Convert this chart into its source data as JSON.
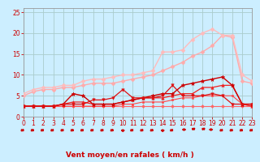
{
  "bg_color": "#cceeff",
  "grid_color": "#aacccc",
  "xlabel": "Vent moyen/en rafales ( km/h )",
  "xlim": [
    0,
    23
  ],
  "ylim": [
    0,
    26
  ],
  "yticks": [
    0,
    5,
    10,
    15,
    20,
    25
  ],
  "xticks": [
    0,
    1,
    2,
    3,
    4,
    5,
    6,
    7,
    8,
    9,
    10,
    11,
    12,
    13,
    14,
    15,
    16,
    17,
    18,
    19,
    20,
    21,
    22,
    23
  ],
  "series": [
    {
      "x": [
        0,
        1,
        2,
        3,
        4,
        5,
        6,
        7,
        8,
        9,
        10,
        11,
        12,
        13,
        14,
        15,
        16,
        17,
        18,
        19,
        20,
        21,
        22,
        23
      ],
      "y": [
        2.5,
        2.5,
        2.5,
        2.5,
        2.5,
        2.5,
        2.5,
        2.5,
        2.5,
        2.5,
        2.5,
        2.5,
        2.5,
        2.5,
        2.5,
        2.5,
        2.5,
        2.5,
        2.5,
        2.5,
        2.5,
        2.5,
        2.5,
        2.5
      ],
      "color": "#ff6666",
      "marker": "D",
      "markersize": 2,
      "linewidth": 0.8
    },
    {
      "x": [
        0,
        1,
        2,
        3,
        4,
        5,
        6,
        7,
        8,
        9,
        10,
        11,
        12,
        13,
        14,
        15,
        16,
        17,
        18,
        19,
        20,
        21,
        22,
        23
      ],
      "y": [
        2.5,
        2.5,
        2.5,
        2.5,
        2.5,
        2.5,
        2.5,
        2.5,
        2.5,
        2.5,
        3.0,
        3.0,
        3.5,
        3.5,
        3.5,
        4.0,
        4.5,
        4.5,
        5.0,
        5.0,
        5.0,
        5.0,
        3.0,
        2.5
      ],
      "color": "#ff4444",
      "marker": "s",
      "markersize": 2,
      "linewidth": 0.8
    },
    {
      "x": [
        0,
        1,
        2,
        3,
        4,
        5,
        6,
        7,
        8,
        9,
        10,
        11,
        12,
        13,
        14,
        15,
        16,
        17,
        18,
        19,
        20,
        21,
        22,
        23
      ],
      "y": [
        2.5,
        2.5,
        2.5,
        2.5,
        3.0,
        3.5,
        3.5,
        3.0,
        3.0,
        3.0,
        3.5,
        4.0,
        4.5,
        4.5,
        4.5,
        5.0,
        5.5,
        5.5,
        7.0,
        7.0,
        7.5,
        7.5,
        3.0,
        2.5
      ],
      "color": "#ee2222",
      "marker": "^",
      "markersize": 2.5,
      "linewidth": 0.9
    },
    {
      "x": [
        0,
        1,
        2,
        3,
        4,
        5,
        6,
        7,
        8,
        9,
        10,
        11,
        12,
        13,
        14,
        15,
        16,
        17,
        18,
        19,
        20,
        21,
        22,
        23
      ],
      "y": [
        2.5,
        2.5,
        2.5,
        2.5,
        3.0,
        5.5,
        5.0,
        3.0,
        3.0,
        3.0,
        3.5,
        4.0,
        4.5,
        5.0,
        5.5,
        5.5,
        7.5,
        8.0,
        8.5,
        9.0,
        9.5,
        7.5,
        3.0,
        3.0
      ],
      "color": "#cc0000",
      "marker": "*",
      "markersize": 3.5,
      "linewidth": 1.0
    },
    {
      "x": [
        0,
        1,
        2,
        3,
        4,
        5,
        6,
        7,
        8,
        9,
        10,
        11,
        12,
        13,
        14,
        15,
        16,
        17,
        18,
        19,
        20,
        21,
        22,
        23
      ],
      "y": [
        2.5,
        2.5,
        2.5,
        2.5,
        3.0,
        3.0,
        3.0,
        4.0,
        4.0,
        4.5,
        6.5,
        4.5,
        4.5,
        4.5,
        5.0,
        7.5,
        5.0,
        5.0,
        5.0,
        5.5,
        5.0,
        3.0,
        3.0,
        3.0
      ],
      "color": "#dd1111",
      "marker": "v",
      "markersize": 2.5,
      "linewidth": 0.9
    },
    {
      "x": [
        0,
        1,
        2,
        3,
        4,
        5,
        6,
        7,
        8,
        9,
        10,
        11,
        12,
        13,
        14,
        15,
        16,
        17,
        18,
        19,
        20,
        21,
        22,
        23
      ],
      "y": [
        5.0,
        6.0,
        6.5,
        6.5,
        7.0,
        7.0,
        7.5,
        8.0,
        8.0,
        8.0,
        8.5,
        9.0,
        9.5,
        10.0,
        11.0,
        12.0,
        13.0,
        14.5,
        15.5,
        17.0,
        19.5,
        19.0,
        8.5,
        8.0
      ],
      "color": "#ffaaaa",
      "marker": "D",
      "markersize": 2.5,
      "linewidth": 1.0
    },
    {
      "x": [
        0,
        1,
        2,
        3,
        4,
        5,
        6,
        7,
        8,
        9,
        10,
        11,
        12,
        13,
        14,
        15,
        16,
        17,
        18,
        19,
        20,
        21,
        22,
        23
      ],
      "y": [
        5.5,
        6.5,
        7.0,
        7.0,
        7.5,
        7.5,
        8.5,
        9.0,
        9.0,
        9.5,
        10.0,
        10.0,
        10.5,
        11.0,
        15.5,
        15.5,
        16.0,
        18.5,
        20.0,
        21.0,
        19.5,
        19.5,
        10.0,
        8.5
      ],
      "color": "#ffbbbb",
      "marker": "D",
      "markersize": 2.5,
      "linewidth": 1.0
    }
  ],
  "arrow_color": "#cc0000",
  "xlabel_color": "#cc0000",
  "tick_color": "#cc0000",
  "axis_label_fontsize": 6.5,
  "tick_fontsize": 5.5
}
